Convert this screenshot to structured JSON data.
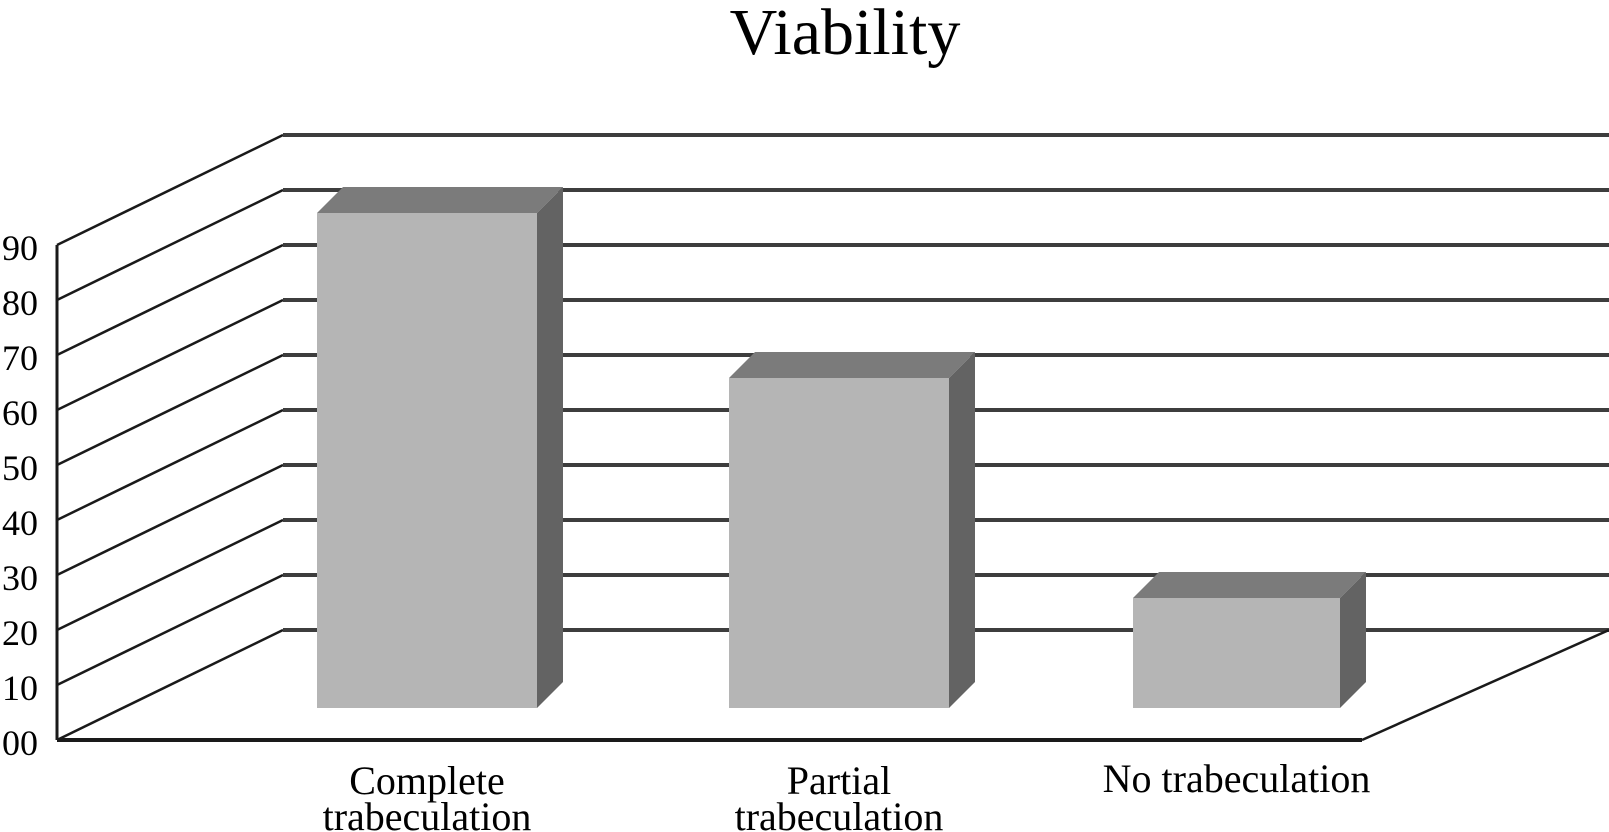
{
  "chart_data": {
    "type": "bar",
    "projection": "3d",
    "title": "Viability",
    "categories": [
      "Complete trabeculation",
      "Partial trabeculation",
      "No trabeculation"
    ],
    "values": [
      90,
      60,
      20
    ],
    "yticks": [
      {
        "label": "00",
        "value": 0
      },
      {
        "label": "10",
        "value": 10
      },
      {
        "label": "20",
        "value": 20
      },
      {
        "label": "30",
        "value": 30
      },
      {
        "label": "40",
        "value": 40
      },
      {
        "label": "50",
        "value": 50
      },
      {
        "label": "60",
        "value": 60
      },
      {
        "label": "70",
        "value": 70
      },
      {
        "label": "80",
        "value": 80
      },
      {
        "label": "90",
        "value": 90
      }
    ],
    "ylim": [
      0,
      90
    ],
    "xlabel": "",
    "ylabel": "",
    "grid": true,
    "legend": false,
    "colors": {
      "bar_front": "#b5b5b5",
      "bar_top": "#7b7b7b",
      "bar_side": "#636363",
      "grid_horizontal": "#3d3d3d",
      "grid_diagonal": "#1a1a1a",
      "axis_line": "#1a1a1a",
      "text": "#000000",
      "background": "#ffffff"
    }
  }
}
